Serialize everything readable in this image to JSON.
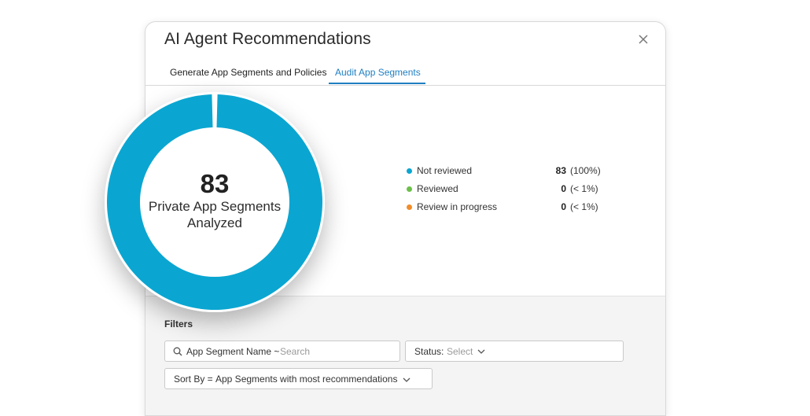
{
  "modal": {
    "title": "AI Agent Recommendations",
    "close_icon": "close-icon"
  },
  "tabs": [
    {
      "label": "Generate App Segments and Policies",
      "active": false
    },
    {
      "label": "Audit App Segments",
      "active": true
    }
  ],
  "summary": {
    "total": "83",
    "caption_line1": "Private App Segments",
    "caption_line2": "Analyzed"
  },
  "chart_data": {
    "type": "pie",
    "categories": [
      "Not reviewed",
      "Reviewed",
      "Review in progress"
    ],
    "values": [
      83,
      0,
      0
    ],
    "colors": [
      "#0aa6d1",
      "#6cc04a",
      "#f28c28"
    ]
  },
  "legend": [
    {
      "label": "Not reviewed",
      "count": "83",
      "percent": "(100%)",
      "color": "#0aa6d1"
    },
    {
      "label": "Reviewed",
      "count": "0",
      "percent": "(< 1%)",
      "color": "#6cc04a"
    },
    {
      "label": "Review in progress",
      "count": "0",
      "percent": "(< 1%)",
      "color": "#f28c28"
    }
  ],
  "filters": {
    "heading": "Filters",
    "search": {
      "label": "App Segment Name ~",
      "placeholder": "Search",
      "icon": "search-icon"
    },
    "status": {
      "label": "Status:",
      "placeholder": "Select",
      "icon": "chevron-down-icon"
    },
    "sort": {
      "label": "Sort By =",
      "value": "App Segments with most recommendations",
      "icon": "chevron-down-icon"
    }
  },
  "colors": {
    "accent": "#1f7fc1",
    "donut": "#0aa6d1"
  }
}
